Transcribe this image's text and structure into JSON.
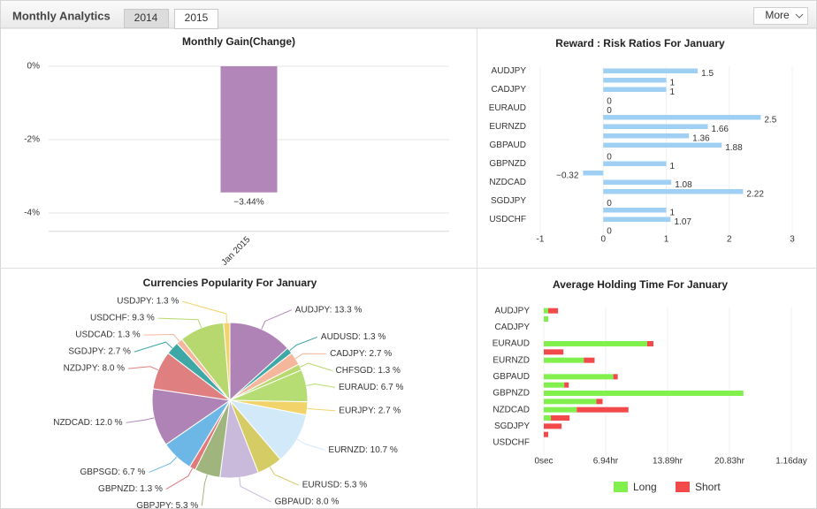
{
  "header": {
    "title": "Monthly Analytics",
    "tabs": [
      "2014",
      "2015"
    ],
    "more": "More"
  },
  "chart_data": [
    {
      "type": "bar",
      "title": "Monthly Gain(Change)",
      "categories": [
        "Jan 2015"
      ],
      "values": [
        -3.44
      ],
      "value_labels": [
        "−3.44%"
      ],
      "color": "#b286b8",
      "ylim": [
        -4.5,
        0.3
      ],
      "yticks": [
        {
          "value": 0,
          "label": "0%"
        },
        {
          "value": -2,
          "label": "-2%"
        },
        {
          "value": -4,
          "label": "-4%"
        }
      ],
      "grid": true
    },
    {
      "type": "bar",
      "orientation": "horizontal",
      "title": "Reward : Risk Ratios For January",
      "categories": [
        "AUDJPY",
        null,
        "CADJPY",
        null,
        "EURAUD",
        null,
        "EURNZD",
        null,
        "GBPAUD",
        null,
        "GBPNZD",
        null,
        "NZDCAD",
        null,
        "SGDJPY",
        null,
        "USDCHF",
        null
      ],
      "values": [
        1.5,
        1,
        1,
        0,
        0,
        2.5,
        1.66,
        1.36,
        1.88,
        0,
        1,
        -0.32,
        1.08,
        2.22,
        0,
        1,
        1.07,
        0
      ],
      "value_labels": [
        "1.5",
        "1",
        "1",
        "0",
        "0",
        "2.5",
        "1.66",
        "1.36",
        "1.88",
        "0",
        "1",
        "−0.32",
        "1.08",
        "2.22",
        "0",
        "1",
        "1.07",
        "0"
      ],
      "color": "#9fd0f3",
      "xlim": [
        -1,
        3
      ],
      "xticks": [
        -1,
        0,
        1,
        2,
        3
      ],
      "grid": true
    },
    {
      "type": "pie",
      "title": "Currencies Popularity For January",
      "values": [
        13.3,
        1.3,
        2.7,
        1.3,
        6.7,
        2.7,
        10.7,
        5.3,
        8,
        5.3,
        1.3,
        6.7,
        12,
        8,
        2.7,
        1.3,
        9.3,
        1.3
      ],
      "value_labels": [
        "AUDJPY: 13.3 %",
        "AUDUSD: 1.3 %",
        "CADJPY: 2.7 %",
        "CHFSGD: 1.3 %",
        "EURAUD: 6.7 %",
        "EURJPY: 2.7 %",
        "EURNZD: 10.7 %",
        "EURUSD: 5.3 %",
        "GBPAUD: 8.0 %",
        "GBPJPY: 5.3 %",
        "GBPNZD: 1.3 %",
        "GBPSGD: 6.7 %",
        "NZDCAD: 12.0 %",
        "NZDJPY: 8.0 %",
        "SGDJPY: 2.7 %",
        "USDCAD: 1.3 %",
        "USDCHF: 9.3 %",
        "USDJPY: 1.3 %"
      ],
      "colors": [
        "#b083b6",
        "#3fa8a6",
        "#f4b79c",
        "#b9d86f",
        "#b6dc74",
        "#f2d36a",
        "#d2e9fa",
        "#d6cc66",
        "#c9b9da",
        "#a0b57d",
        "#e07a7a",
        "#6db7e6",
        "#b083b6",
        "#e07f7f",
        "#3fa8a6",
        "#f4b79c",
        "#b6d86f",
        "#f2d36a"
      ]
    },
    {
      "type": "bar",
      "orientation": "horizontal",
      "stacked": true,
      "title": "Average Holding Time For January",
      "categories": [
        "AUDJPY",
        null,
        "CADJPY",
        null,
        "EURAUD",
        null,
        "EURNZD",
        null,
        "GBPAUD",
        null,
        "GBPNZD",
        null,
        "NZDCAD",
        null,
        "SGDJPY",
        null,
        "USDCHF",
        null
      ],
      "series": [
        {
          "name": "Long",
          "color": "#82f04c",
          "values": [
            0.5,
            0.5,
            0,
            0,
            11.6,
            0,
            4.5,
            0,
            7.8,
            2.3,
            22.4,
            5.9,
            3.7,
            0.8,
            0,
            0,
            0,
            0
          ]
        },
        {
          "name": "Short",
          "color": "#f24a4a",
          "values": [
            1.1,
            0,
            0,
            0,
            0.7,
            2.2,
            1.2,
            0,
            0.5,
            0.5,
            0,
            0.7,
            5.8,
            2.1,
            2.0,
            0.5,
            0,
            0
          ]
        }
      ],
      "xlim": [
        0,
        27.78
      ],
      "xticks": [
        {
          "value": 0,
          "label": "0sec"
        },
        {
          "value": 6.94,
          "label": "6.94hr"
        },
        {
          "value": 13.89,
          "label": "13.89hr"
        },
        {
          "value": 20.83,
          "label": "20.83hr"
        },
        {
          "value": 27.78,
          "label": "1.16day"
        }
      ],
      "grid": true,
      "legend": "bottom"
    }
  ]
}
